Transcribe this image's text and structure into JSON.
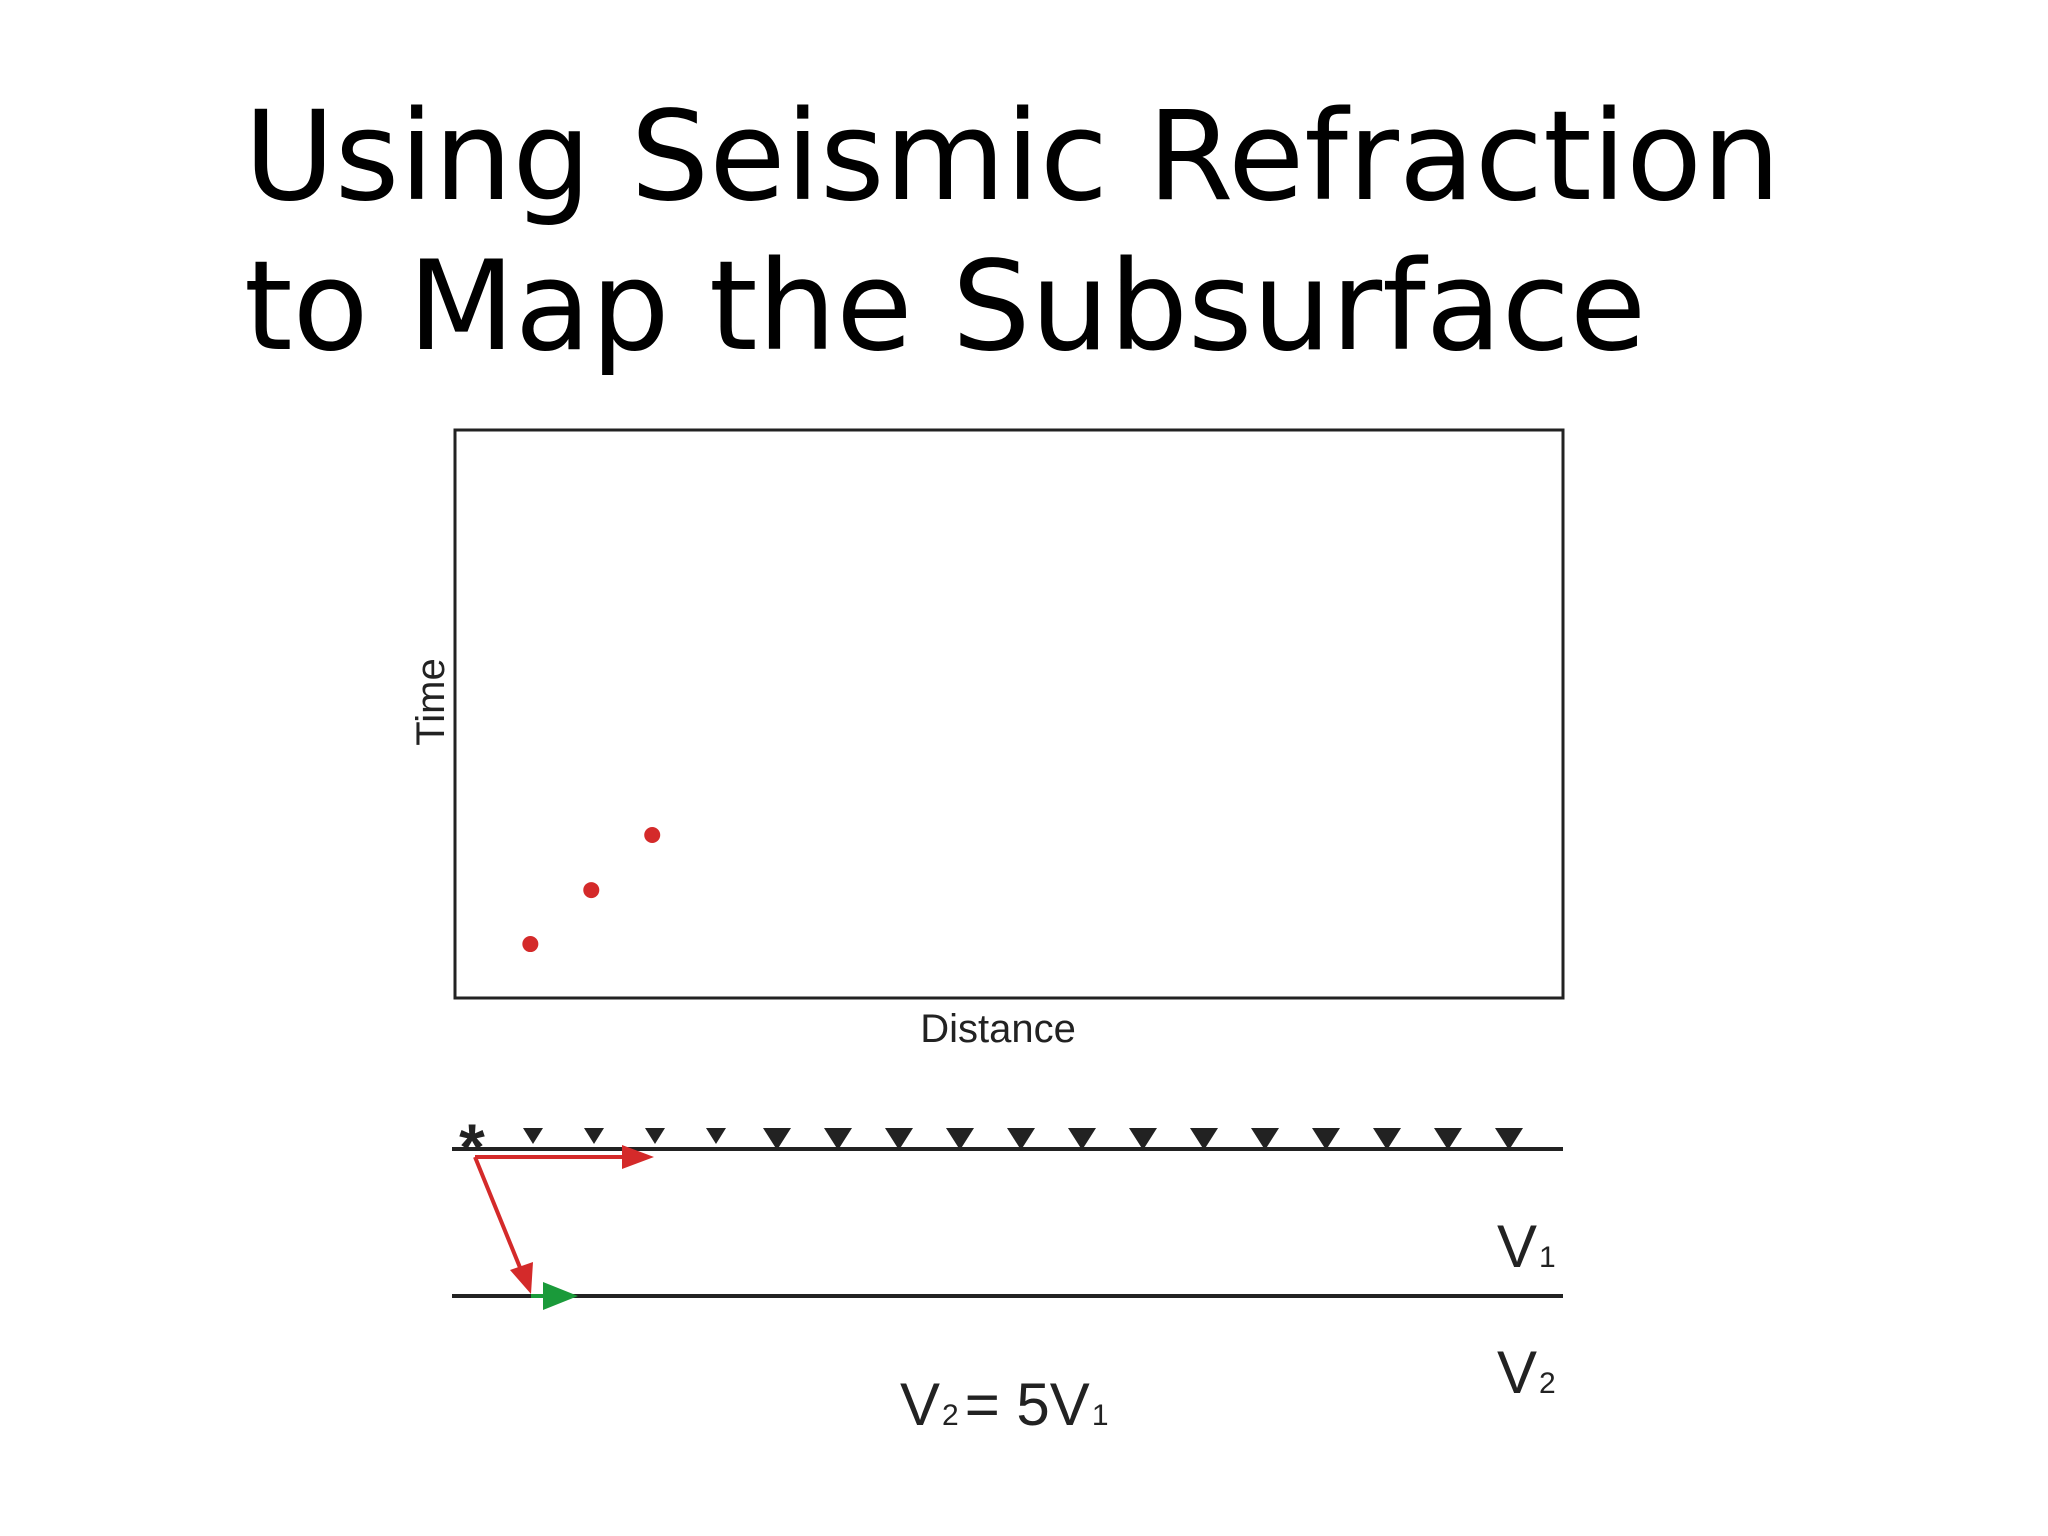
{
  "title": {
    "line1": "Using Seismic Refraction",
    "line2": "to Map the Subsurface"
  },
  "chart_data": {
    "type": "scatter",
    "xlabel": "Distance",
    "ylabel": "Time",
    "xlim": [
      0,
      100
    ],
    "ylim": [
      0,
      100
    ],
    "grid": false,
    "points": [
      {
        "x": 6.8,
        "y": 9.5
      },
      {
        "x": 12.3,
        "y": 19.0
      },
      {
        "x": 17.8,
        "y": 28.7
      }
    ],
    "point_color": "#d42a2a"
  },
  "diagram": {
    "source_marker": "*",
    "geophone_count": 17,
    "layer1_label": {
      "main": "V",
      "sub": "1"
    },
    "layer2_label": {
      "main": "V",
      "sub": "2"
    },
    "equation": {
      "lhs_main": "V",
      "lhs_sub": "2",
      "rhs": "= 5V",
      "rhs_sub": "1"
    },
    "colors": {
      "direct_ray": "#d42a2a",
      "refracted_ray": "#1a9a3a",
      "lines": "#222222"
    }
  }
}
